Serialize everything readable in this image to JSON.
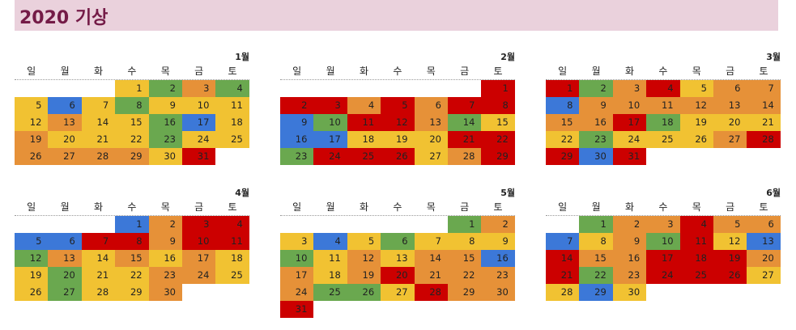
{
  "title": "2020 기상",
  "weekdays": [
    "일",
    "월",
    "화",
    "수",
    "목",
    "금",
    "토"
  ],
  "colors": {
    "red": "#cc0000",
    "orange": "#e69138",
    "yellow": "#f1c232",
    "green": "#6aa84f",
    "blue": "#3c78d8"
  },
  "months": [
    {
      "name": "1월",
      "start": 3,
      "days": [
        "yellow",
        "green",
        "orange",
        "green",
        "yellow",
        "blue",
        "yellow",
        "green",
        "yellow",
        "yellow",
        "yellow",
        "yellow",
        "orange",
        "yellow",
        "yellow",
        "green",
        "blue",
        "yellow",
        "orange",
        "yellow",
        "yellow",
        "yellow",
        "green",
        "yellow",
        "yellow",
        "orange",
        "orange",
        "orange",
        "orange",
        "yellow",
        "red"
      ]
    },
    {
      "name": "2월",
      "start": 6,
      "days": [
        "red",
        "red",
        "red",
        "orange",
        "red",
        "orange",
        "red",
        "red",
        "blue",
        "green",
        "red",
        "red",
        "orange",
        "green",
        "yellow",
        "blue",
        "blue",
        "yellow",
        "yellow",
        "yellow",
        "red",
        "red",
        "green",
        "red",
        "red",
        "red",
        "yellow",
        "orange",
        "red"
      ]
    },
    {
      "name": "3월",
      "start": 0,
      "days": [
        "red",
        "green",
        "orange",
        "red",
        "yellow",
        "orange",
        "orange",
        "blue",
        "orange",
        "orange",
        "orange",
        "orange",
        "orange",
        "orange",
        "orange",
        "orange",
        "red",
        "green",
        "yellow",
        "yellow",
        "yellow",
        "yellow",
        "green",
        "yellow",
        "yellow",
        "yellow",
        "orange",
        "red",
        "red",
        "blue",
        "red"
      ]
    },
    {
      "name": "4월",
      "start": 3,
      "days": [
        "blue",
        "orange",
        "red",
        "red",
        "blue",
        "blue",
        "red",
        "red",
        "orange",
        "red",
        "red",
        "green",
        "orange",
        "yellow",
        "orange",
        "yellow",
        "orange",
        "yellow",
        "yellow",
        "green",
        "yellow",
        "yellow",
        "orange",
        "orange",
        "yellow",
        "yellow",
        "green",
        "yellow",
        "yellow",
        "orange"
      ]
    },
    {
      "name": "5월",
      "start": 5,
      "days": [
        "green",
        "orange",
        "yellow",
        "blue",
        "yellow",
        "green",
        "yellow",
        "yellow",
        "yellow",
        "green",
        "yellow",
        "orange",
        "yellow",
        "orange",
        "orange",
        "blue",
        "orange",
        "yellow",
        "orange",
        "red",
        "orange",
        "orange",
        "orange",
        "orange",
        "green",
        "green",
        "yellow",
        "red",
        "orange",
        "orange",
        "red"
      ]
    },
    {
      "name": "6월",
      "start": 1,
      "days": [
        "green",
        "orange",
        "orange",
        "red",
        "orange",
        "orange",
        "blue",
        "yellow",
        "orange",
        "green",
        "red",
        "yellow",
        "blue",
        "red",
        "orange",
        "orange",
        "red",
        "red",
        "red",
        "orange",
        "red",
        "green",
        "orange",
        "red",
        "red",
        "red",
        "yellow",
        "yellow",
        "blue",
        "yellow"
      ]
    }
  ]
}
